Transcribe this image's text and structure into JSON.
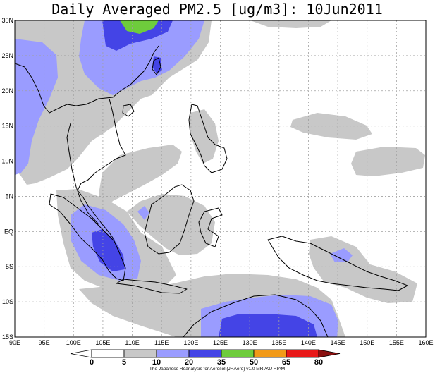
{
  "chart_data": {
    "type": "heatmap",
    "title": "Daily Averaged PM2.5 [ug/m3]: 10Jun2011",
    "x_ticks": [
      "90E",
      "95E",
      "100E",
      "105E",
      "110E",
      "115E",
      "120E",
      "125E",
      "130E",
      "135E",
      "140E",
      "145E",
      "150E",
      "155E",
      "160E"
    ],
    "y_ticks": [
      "30N",
      "25N",
      "20N",
      "15N",
      "10N",
      "5N",
      "EQ",
      "5S",
      "10S",
      "15S"
    ],
    "xlim": [
      90,
      160
    ],
    "ylim": [
      -15,
      30
    ],
    "grid": true,
    "colorbar": {
      "levels": [
        "0",
        "5",
        "10",
        "20",
        "35",
        "50",
        "65",
        "80"
      ],
      "colors": [
        "#ffffff",
        "#ffffff",
        "#c8c8c8",
        "#9a9cff",
        "#4444e6",
        "#6ecc3c",
        "#f29a18",
        "#e81818",
        "#8a1010"
      ]
    },
    "credit": "The Japanese Reanalysis for Aerosol (JRAero) v1.0 MRI/KU RIAM",
    "colors": {
      "gray": "#c8c8c8",
      "light_blue": "#9a9cff",
      "blue": "#4444e6",
      "green": "#6ecc3c"
    }
  }
}
